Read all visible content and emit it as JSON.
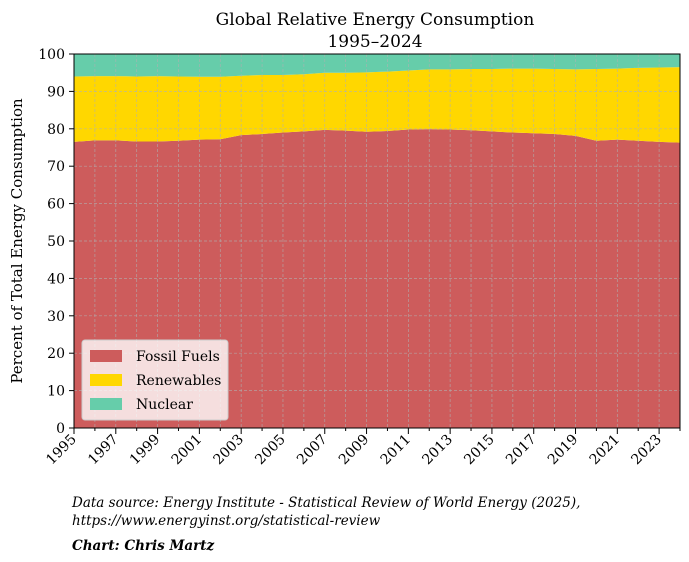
{
  "chart_data": {
    "type": "area",
    "stacked": true,
    "title": "Global Relative Energy Consumption",
    "subtitle": "1995–2024",
    "ylabel": "Percent of Total Energy Consumption",
    "xlabel": "",
    "xlim": [
      1995,
      2024
    ],
    "ylim": [
      0,
      100
    ],
    "grid": true,
    "legend_position": "bottom-left",
    "x": [
      1995,
      1996,
      1997,
      1998,
      1999,
      2000,
      2001,
      2002,
      2003,
      2004,
      2005,
      2006,
      2007,
      2008,
      2009,
      2010,
      2011,
      2012,
      2013,
      2014,
      2015,
      2016,
      2017,
      2018,
      2019,
      2020,
      2021,
      2022,
      2023,
      2024
    ],
    "x_tick_labels": [
      "1995",
      "1997",
      "1999",
      "2001",
      "2003",
      "2005",
      "2007",
      "2009",
      "2011",
      "2013",
      "2015",
      "2017",
      "2019",
      "2021",
      "2023"
    ],
    "y_ticks": [
      0,
      10,
      20,
      30,
      40,
      50,
      60,
      70,
      80,
      90,
      100
    ],
    "series": [
      {
        "name": "Fossil Fuels",
        "color": "#cd5c5c",
        "values": [
          76.5,
          76.9,
          76.9,
          76.6,
          76.6,
          76.8,
          77.1,
          77.2,
          78.3,
          78.6,
          79.0,
          79.3,
          79.7,
          79.5,
          79.2,
          79.4,
          79.8,
          79.9,
          79.8,
          79.6,
          79.3,
          79.0,
          78.8,
          78.6,
          78.1,
          76.8,
          77.1,
          76.8,
          76.5,
          76.3
        ]
      },
      {
        "name": "Renewables",
        "color": "#ffd700",
        "values": [
          17.5,
          17.2,
          17.2,
          17.4,
          17.5,
          17.2,
          16.8,
          16.7,
          15.9,
          15.8,
          15.4,
          15.3,
          15.3,
          15.5,
          15.9,
          15.9,
          15.8,
          16.0,
          16.1,
          16.4,
          16.7,
          17.1,
          17.3,
          17.4,
          17.8,
          19.2,
          19.0,
          19.5,
          19.9,
          20.2
        ]
      },
      {
        "name": "Nuclear",
        "color": "#66cdaa",
        "values": [
          6.0,
          5.9,
          5.9,
          6.0,
          5.9,
          6.0,
          6.1,
          6.1,
          5.8,
          5.6,
          5.6,
          5.4,
          5.0,
          5.0,
          4.9,
          4.7,
          4.4,
          4.1,
          4.1,
          4.0,
          4.0,
          3.9,
          3.9,
          4.0,
          4.1,
          4.0,
          3.9,
          3.7,
          3.6,
          3.5
        ]
      }
    ]
  },
  "footer": {
    "source_line1": "Data source: Energy Institute - Statistical Review of World Energy (2025),",
    "source_line2": "https://www.energyinst.org/statistical-review",
    "credit": "Chart: Chris Martz"
  }
}
